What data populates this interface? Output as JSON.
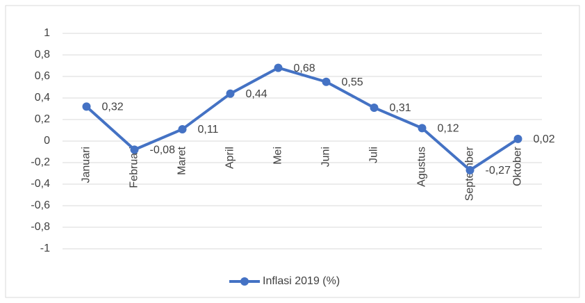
{
  "chart_data": {
    "type": "line",
    "categories": [
      "Januari",
      "Februari",
      "Maret",
      "April",
      "Mei",
      "Juni",
      "Juli",
      "Agustus",
      "September",
      "Oktober"
    ],
    "series": [
      {
        "name": "Inflasi 2019 (%)",
        "color": "#4472c4",
        "values": [
          0.32,
          -0.08,
          0.11,
          0.44,
          0.68,
          0.55,
          0.31,
          0.12,
          -0.27,
          0.02
        ],
        "value_labels": [
          "0,32",
          "-0,08",
          "0,11",
          "0,44",
          "0,68",
          "0,55",
          "0,31",
          "0,12",
          "-0,27",
          "0,02"
        ]
      }
    ],
    "ylim": [
      -1,
      1
    ],
    "yticks": [
      {
        "value": -1,
        "label": "-1"
      },
      {
        "value": -0.8,
        "label": "-0,8"
      },
      {
        "value": -0.6,
        "label": "-0,6"
      },
      {
        "value": -0.4,
        "label": "-0,4"
      },
      {
        "value": -0.2,
        "label": "-0,2"
      },
      0,
      {
        "value": 0.2,
        "label": "0,2"
      },
      {
        "value": 0.4,
        "label": "0,4"
      },
      {
        "value": 0.6,
        "label": "0,6"
      },
      {
        "value": 0.8,
        "label": "0,8"
      },
      1
    ],
    "grid": true,
    "legend": "bottom"
  }
}
